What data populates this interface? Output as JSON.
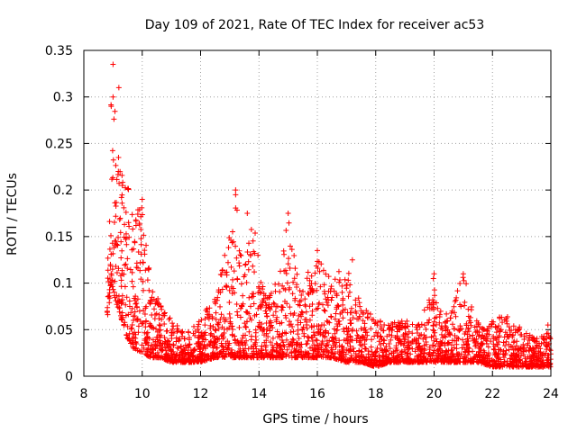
{
  "chart_data": {
    "type": "scatter",
    "title": "Day 109 of 2021, Rate Of TEC Index for receiver ac53",
    "xlabel": "GPS time / hours",
    "ylabel": "ROTI / TECUs",
    "xlim": [
      8,
      24
    ],
    "ylim": [
      0,
      0.35
    ],
    "xticks": [
      "8",
      "10",
      "12",
      "14",
      "16",
      "18",
      "20",
      "22",
      "24"
    ],
    "yticks": [
      "0",
      "0.05",
      "0.1",
      "0.15",
      "0.2",
      "0.25",
      "0.3",
      "0.35"
    ],
    "grid": true,
    "marker": "+",
    "color": "#ff0000",
    "series": [
      {
        "name": "ROTI",
        "envelope": [
          [
            8.8,
            0.06,
            0.12
          ],
          [
            8.95,
            0.1,
            0.33
          ],
          [
            9.1,
            0.08,
            0.28
          ],
          [
            9.3,
            0.06,
            0.22
          ],
          [
            9.5,
            0.04,
            0.22
          ],
          [
            9.7,
            0.03,
            0.17
          ],
          [
            10.0,
            0.025,
            0.19
          ],
          [
            10.3,
            0.02,
            0.1
          ],
          [
            10.6,
            0.02,
            0.08
          ],
          [
            11.0,
            0.015,
            0.06
          ],
          [
            11.5,
            0.015,
            0.05
          ],
          [
            12.0,
            0.015,
            0.06
          ],
          [
            12.5,
            0.02,
            0.09
          ],
          [
            12.9,
            0.02,
            0.14
          ],
          [
            13.2,
            0.02,
            0.2
          ],
          [
            13.5,
            0.02,
            0.12
          ],
          [
            13.8,
            0.02,
            0.17
          ],
          [
            14.2,
            0.02,
            0.09
          ],
          [
            14.6,
            0.02,
            0.1
          ],
          [
            15.0,
            0.02,
            0.17
          ],
          [
            15.4,
            0.02,
            0.1
          ],
          [
            16.0,
            0.02,
            0.13
          ],
          [
            16.5,
            0.02,
            0.11
          ],
          [
            17.0,
            0.015,
            0.12
          ],
          [
            17.5,
            0.015,
            0.08
          ],
          [
            18.0,
            0.01,
            0.06
          ],
          [
            18.5,
            0.015,
            0.06
          ],
          [
            19.0,
            0.015,
            0.06
          ],
          [
            19.5,
            0.015,
            0.06
          ],
          [
            20.0,
            0.015,
            0.11
          ],
          [
            20.3,
            0.015,
            0.06
          ],
          [
            21.0,
            0.015,
            0.11
          ],
          [
            21.5,
            0.015,
            0.06
          ],
          [
            22.0,
            0.01,
            0.06
          ],
          [
            22.5,
            0.01,
            0.07
          ],
          [
            23.0,
            0.01,
            0.05
          ],
          [
            23.5,
            0.01,
            0.04
          ],
          [
            24.0,
            0.01,
            0.05
          ]
        ],
        "notable_points": [
          [
            9.0,
            0.335
          ],
          [
            9.2,
            0.31
          ],
          [
            9.0,
            0.3
          ],
          [
            13.2,
            0.2
          ],
          [
            13.2,
            0.195
          ],
          [
            15.0,
            0.175
          ],
          [
            13.6,
            0.175
          ],
          [
            10.0,
            0.19
          ],
          [
            16.0,
            0.135
          ],
          [
            17.2,
            0.125
          ],
          [
            20.0,
            0.11
          ],
          [
            21.0,
            0.11
          ],
          [
            23.9,
            0.055
          ]
        ]
      }
    ]
  }
}
